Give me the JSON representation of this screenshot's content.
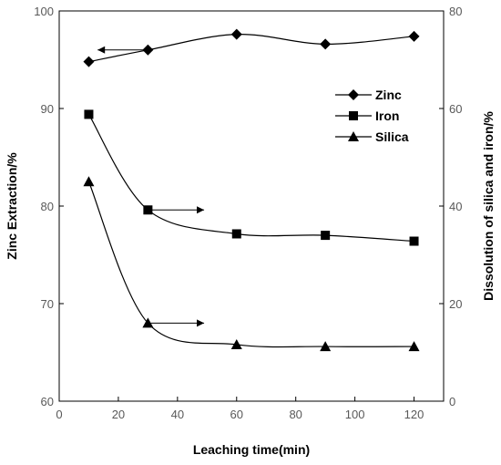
{
  "chart_data": {
    "type": "line",
    "xlabel": "Leaching time(min)",
    "ylabel_left": "Zinc Extraction/%",
    "ylabel_right": "Dissolution of silica and iron/%",
    "xlim": [
      0,
      130
    ],
    "ylim_left": [
      60,
      100
    ],
    "ylim_right": [
      0,
      80
    ],
    "x_ticks": [
      0,
      20,
      40,
      60,
      80,
      100,
      120
    ],
    "y_left_ticks": [
      60,
      70,
      80,
      90,
      100
    ],
    "y_right_ticks": [
      0,
      20,
      40,
      60,
      80
    ],
    "grid": false,
    "legend_position": "right",
    "series": [
      {
        "name": "Zinc",
        "axis": "left",
        "marker": "diamond",
        "x": [
          10,
          30,
          60,
          90,
          120
        ],
        "y": [
          94.8,
          96.0,
          97.6,
          96.6,
          97.4
        ]
      },
      {
        "name": "Iron",
        "axis": "right",
        "marker": "square",
        "x": [
          10,
          30,
          60,
          90,
          120
        ],
        "y": [
          58.8,
          39.2,
          34.3,
          34.0,
          32.8
        ]
      },
      {
        "name": "Silica",
        "axis": "right",
        "marker": "triangle",
        "x": [
          10,
          30,
          60,
          90,
          120
        ],
        "y": [
          45.0,
          16.0,
          11.6,
          11.2,
          11.2
        ]
      }
    ],
    "annotations": [
      {
        "type": "arrow",
        "direction": "left",
        "series": "Zinc",
        "axis": "left",
        "y": 96.0,
        "x_from": 30,
        "x_to": 13
      },
      {
        "type": "arrow",
        "direction": "right",
        "series": "Iron",
        "axis": "right",
        "y": 39.2,
        "x_from": 31,
        "x_to": 49
      },
      {
        "type": "arrow",
        "direction": "right",
        "series": "Silica",
        "axis": "right",
        "y": 16.0,
        "x_from": 31,
        "x_to": 49
      }
    ],
    "colors": {
      "line": "#000000",
      "axis": "#000000",
      "tick_label": "#595959"
    }
  }
}
